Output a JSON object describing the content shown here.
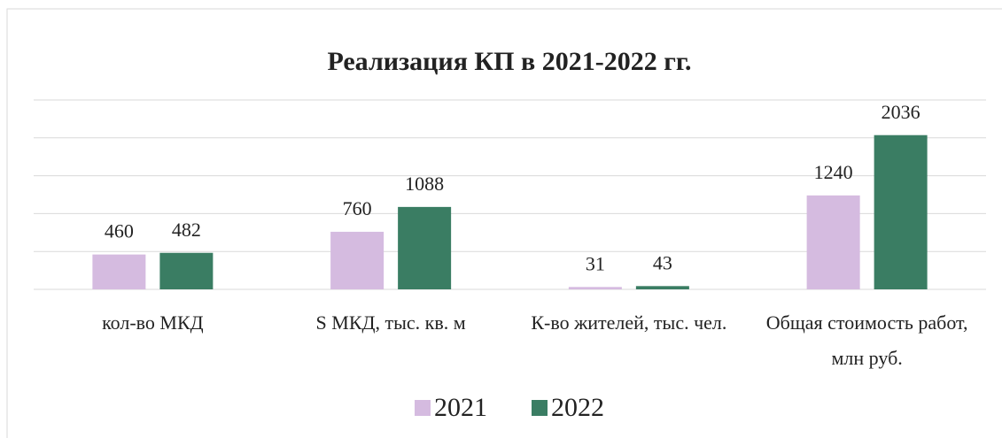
{
  "chart_data": {
    "type": "bar",
    "title": "Реализация КП в 2021-2022 гг.",
    "categories": [
      "кол-во МКД",
      "S МКД, тыс. кв. м",
      "К-во жителей, тыс. чел.",
      "Общая стоимость работ, млн руб."
    ],
    "series": [
      {
        "name": "2021",
        "color": "#d5bbe0",
        "values": [
          460,
          760,
          31,
          1240
        ]
      },
      {
        "name": "2022",
        "color": "#3a7d63",
        "values": [
          482,
          1088,
          43,
          2036
        ]
      }
    ],
    "ylim": [
      0,
      2500
    ],
    "yticks": [
      0,
      500,
      1000,
      1500,
      2000,
      2500
    ],
    "grid": true,
    "legend": "bottom"
  }
}
